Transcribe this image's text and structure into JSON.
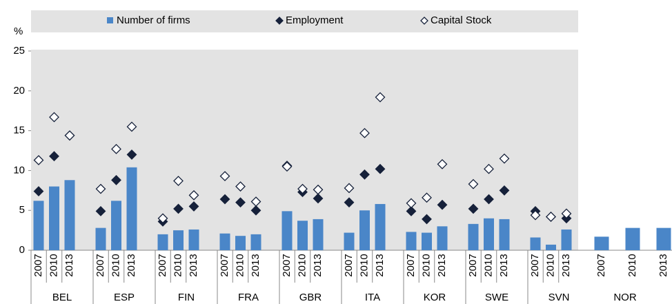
{
  "chart_data": {
    "type": "grouped-bar-marker",
    "y_unit": "%",
    "groups": [
      "BEL",
      "ESP",
      "FIN",
      "FRA",
      "GBR",
      "ITA",
      "KOR",
      "SWE",
      "SVN",
      "NOR"
    ],
    "categories": [
      [
        "2007",
        "2010",
        "2013"
      ],
      [
        "2007",
        "2010",
        "2013"
      ],
      [
        "2007",
        "2010",
        "2013"
      ],
      [
        "2007",
        "2010",
        "2013"
      ],
      [
        "2007",
        "2010",
        "2013"
      ],
      [
        "2007",
        "2010",
        "2013"
      ],
      [
        "2007",
        "2010",
        "2013"
      ],
      [
        "2007",
        "2010",
        "2013"
      ],
      [
        "2007",
        "2010",
        "2013"
      ],
      [
        "2007",
        "2010",
        "2013"
      ]
    ],
    "series": [
      {
        "name": "Number of firms",
        "mark": "bar",
        "color": "#4a86c8",
        "values": [
          [
            6.2,
            8.0,
            8.8
          ],
          [
            2.8,
            6.2,
            10.4
          ],
          [
            2.0,
            2.5,
            2.6
          ],
          [
            2.1,
            1.8,
            2.0
          ],
          [
            4.9,
            3.7,
            3.9
          ],
          [
            2.2,
            5.0,
            5.8
          ],
          [
            2.3,
            2.2,
            3.0
          ],
          [
            3.3,
            4.0,
            3.9
          ],
          [
            1.6,
            0.7,
            2.6
          ],
          [
            1.7,
            2.8,
            2.8
          ]
        ]
      },
      {
        "name": "Employment",
        "mark": "filled-diamond",
        "color": "#16213a",
        "values": [
          [
            7.4,
            11.8,
            14.4
          ],
          [
            4.9,
            8.8,
            12.0
          ],
          [
            3.6,
            5.2,
            5.5
          ],
          [
            6.4,
            6.0,
            5.0
          ],
          [
            10.6,
            7.3,
            6.5
          ],
          [
            6.0,
            9.5,
            10.2
          ],
          [
            4.9,
            3.9,
            5.7
          ],
          [
            5.2,
            6.4,
            7.5
          ],
          [
            4.9,
            4.2,
            4.0
          ],
          [
            null,
            null,
            null
          ]
        ]
      },
      {
        "name": "Capital Stock",
        "mark": "open-diamond",
        "color": "#16213a",
        "values": [
          [
            11.3,
            16.7,
            14.4
          ],
          [
            7.7,
            12.7,
            15.5
          ],
          [
            4.0,
            8.7,
            6.9
          ],
          [
            9.3,
            8.0,
            6.1
          ],
          [
            10.5,
            7.7,
            7.6
          ],
          [
            7.8,
            14.7,
            19.2
          ],
          [
            5.9,
            6.6,
            10.8
          ],
          [
            8.3,
            10.2,
            11.5
          ],
          [
            4.4,
            4.2,
            4.6
          ],
          [
            null,
            null,
            null
          ]
        ]
      }
    ],
    "ylim": [
      0,
      25
    ],
    "yticks": [
      0,
      5,
      10,
      15,
      20,
      25
    ],
    "grid": false
  }
}
